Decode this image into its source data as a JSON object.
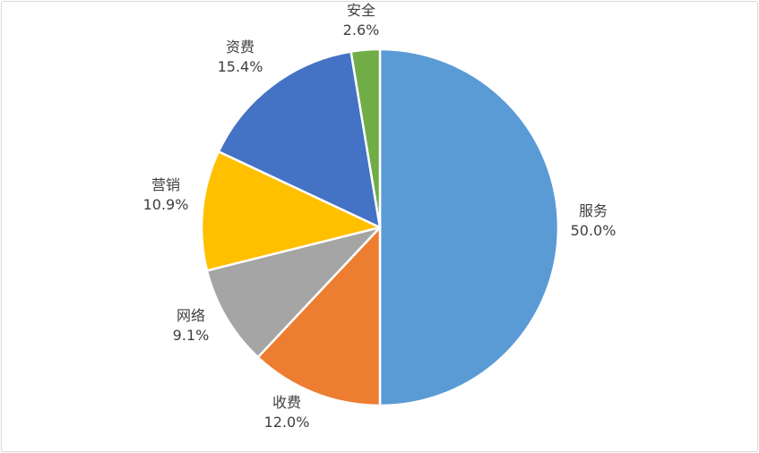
{
  "chart_data": {
    "type": "pie",
    "title": "",
    "start_angle_deg": 0,
    "direction": "clockwise",
    "legend": "none",
    "slices": [
      {
        "label": "服务",
        "value": 50.0,
        "value_label": "50.0%",
        "color": "#5b9bd5"
      },
      {
        "label": "收费",
        "value": 12.0,
        "value_label": "12.0%",
        "color": "#ed7d31"
      },
      {
        "label": "网络",
        "value": 9.1,
        "value_label": "9.1%",
        "color": "#a5a5a5"
      },
      {
        "label": "营销",
        "value": 10.9,
        "value_label": "10.9%",
        "color": "#ffc000"
      },
      {
        "label": "资费",
        "value": 15.4,
        "value_label": "15.4%",
        "color": "#4472c4"
      },
      {
        "label": "安全",
        "value": 2.6,
        "value_label": "2.6%",
        "color": "#70ad47"
      }
    ]
  }
}
